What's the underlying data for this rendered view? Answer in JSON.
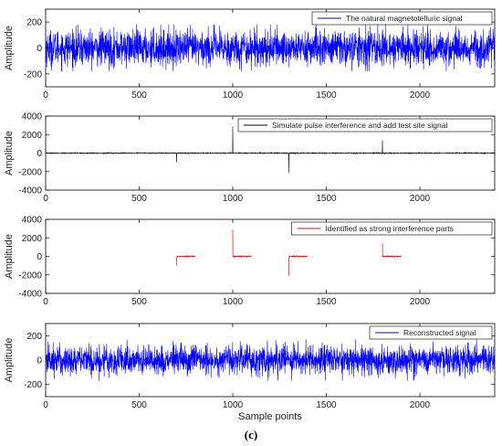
{
  "figure_caption": "(c)",
  "chart_data": [
    {
      "type": "line",
      "id": "panel-1",
      "ylabel": "Amplitude",
      "xlabel": "",
      "xlim": [
        0,
        2400
      ],
      "ylim": [
        -300,
        300
      ],
      "xticks": [
        0,
        500,
        1000,
        1500,
        2000
      ],
      "yticks": [
        200,
        0,
        -200
      ],
      "ytick_labels": [
        "200",
        "0",
        "-200"
      ],
      "legend_position": "top-right",
      "series": [
        {
          "name": "The natural magnetotelluric signal",
          "color": "#0000ff",
          "kind": "noise",
          "amplitude": 70,
          "max_abs": 180,
          "spikes": []
        }
      ]
    },
    {
      "type": "line",
      "id": "panel-2",
      "ylabel": "Amplitude",
      "xlabel": "",
      "xlim": [
        0,
        2400
      ],
      "ylim": [
        -4000,
        4000
      ],
      "xticks": [
        0,
        500,
        1000,
        1500,
        2000
      ],
      "yticks": [
        4000,
        2000,
        0,
        -2000,
        -4000
      ],
      "ytick_labels": [
        "4000",
        "2000",
        "0",
        "-2000",
        "-4000"
      ],
      "legend_position": "top-right",
      "series": [
        {
          "name": "Simulate pulse interference and add test site signal",
          "color": "#000000",
          "kind": "noise",
          "amplitude": 25,
          "max_abs": 60,
          "spikes": [
            {
              "x": 700,
              "value": -1000
            },
            {
              "x": 1000,
              "value": 2900
            },
            {
              "x": 1300,
              "value": -2100
            },
            {
              "x": 1800,
              "value": 1400
            }
          ]
        }
      ]
    },
    {
      "type": "line",
      "id": "panel-3",
      "ylabel": "Amplitude",
      "xlabel": "",
      "xlim": [
        0,
        2400
      ],
      "ylim": [
        -4000,
        4000
      ],
      "xticks": [
        0,
        500,
        1000,
        1500,
        2000
      ],
      "yticks": [
        4000,
        2000,
        0,
        -2000,
        -4000
      ],
      "ytick_labels": [
        "4000",
        "2000",
        "0",
        "-2000",
        "-4000"
      ],
      "legend_position": "top-right",
      "series": [
        {
          "name": "Identified as strong interference parts",
          "color": "#ff0000",
          "kind": "segments",
          "amplitude": 25,
          "max_abs": 60,
          "segments": [
            {
              "start": 700,
              "end": 800,
              "spike": -1000
            },
            {
              "start": 1000,
              "end": 1100,
              "spike": 2900
            },
            {
              "start": 1300,
              "end": 1400,
              "spike": -2100
            },
            {
              "start": 1800,
              "end": 1900,
              "spike": 1400
            }
          ]
        }
      ]
    },
    {
      "type": "line",
      "id": "panel-4",
      "ylabel": "Amplitude",
      "xlabel": "Sample points",
      "xlim": [
        0,
        2400
      ],
      "ylim": [
        -300,
        300
      ],
      "xticks": [
        0,
        500,
        1000,
        1500,
        2000
      ],
      "yticks": [
        200,
        0,
        -200
      ],
      "ytick_labels": [
        "200",
        "0",
        "-200"
      ],
      "legend_position": "top-right",
      "series": [
        {
          "name": "Reconstructed signal",
          "color": "#0000ff",
          "kind": "noise",
          "amplitude": 62,
          "max_abs": 170,
          "spikes": []
        }
      ]
    }
  ]
}
